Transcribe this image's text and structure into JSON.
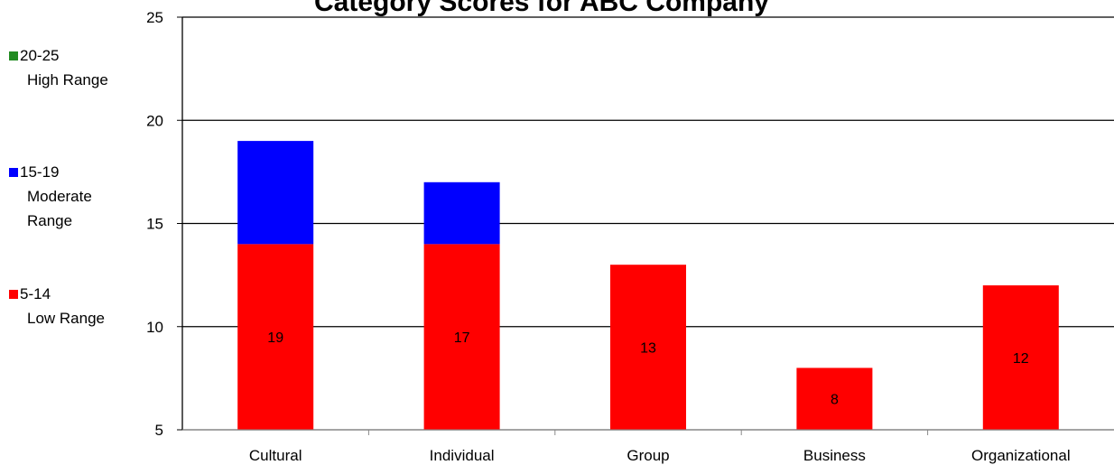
{
  "chart_data": {
    "type": "bar",
    "title": "Category Scores for ABC Company",
    "categories": [
      "Cultural",
      "Individual",
      "Group",
      "Business",
      "Organizational"
    ],
    "values": [
      19,
      17,
      13,
      8,
      12
    ],
    "ylim": [
      5,
      25
    ],
    "yticks": [
      "5",
      "10",
      "15",
      "20",
      "25"
    ],
    "grid": true,
    "legend_position": "left",
    "ranges": [
      {
        "label": "20-25",
        "description": "High Range",
        "min": 20,
        "max": 25,
        "color": "#228b22"
      },
      {
        "label": "15-19",
        "description": "Moderate Range",
        "min": 15,
        "max": 19,
        "color": "#0000ff"
      },
      {
        "label": "5-14",
        "description": "Low Range",
        "min": 5,
        "max": 14,
        "color": "#ff0000"
      }
    ],
    "data_labels": [
      "19",
      "17",
      "13",
      "8",
      "12"
    ]
  },
  "legend": [
    {
      "label": "20-25",
      "description": "High Range",
      "color": "#228b22"
    },
    {
      "label": "15-19",
      "description": "Moderate Range",
      "color": "#0000ff"
    },
    {
      "label": "5-14",
      "description": "Low Range",
      "color": "#ff0000"
    }
  ]
}
